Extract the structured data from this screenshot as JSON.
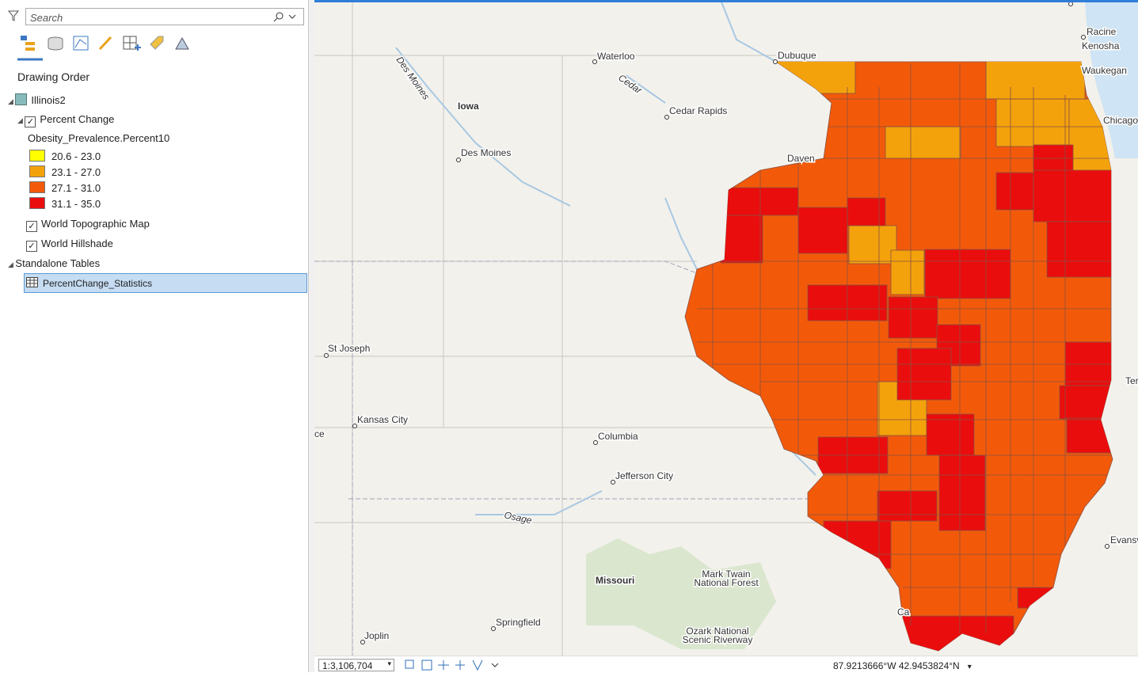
{
  "search": {
    "placeholder": "Search"
  },
  "contents": {
    "heading": "Drawing Order",
    "map": "Illinois2",
    "layers": [
      "Percent Change",
      "World Topographic Map",
      "World Hillshade"
    ],
    "tables_heading": "Standalone Tables",
    "table": "PercentChange_Statistics"
  },
  "legend": {
    "field": "Obesity_Prevalence.Percent10",
    "classes": [
      {
        "label": "20.6 - 23.0",
        "color": "#ffff00"
      },
      {
        "label": "23.1 - 27.0",
        "color": "#f4a20c"
      },
      {
        "label": "27.1 - 31.0",
        "color": "#f25a0a"
      },
      {
        "label": "31.1 - 35.0",
        "color": "#ea0d0d"
      }
    ]
  },
  "map_labels": [
    "Waterloo",
    "Dubuque",
    "Racine",
    "Kenosha",
    "Waukegan",
    "Chicago",
    "Iowa",
    "Cedar Rapids",
    "Des Moines",
    "Daven",
    "St Joseph",
    "Kansas City",
    "Columbia",
    "Jefferson City",
    "Missouri",
    "Springfield",
    "Joplin",
    [
      "Mark Twain",
      "National Forest"
    ],
    [
      "Ozark National",
      "Scenic Riverway"
    ],
    "Evansv",
    "Osage",
    "Des Moines",
    "Cedar",
    "Ter",
    "ce",
    "Ca"
  ],
  "status": {
    "scale": "1:3,106,704",
    "coords": "87.9213666°W 42.9453824°N"
  }
}
